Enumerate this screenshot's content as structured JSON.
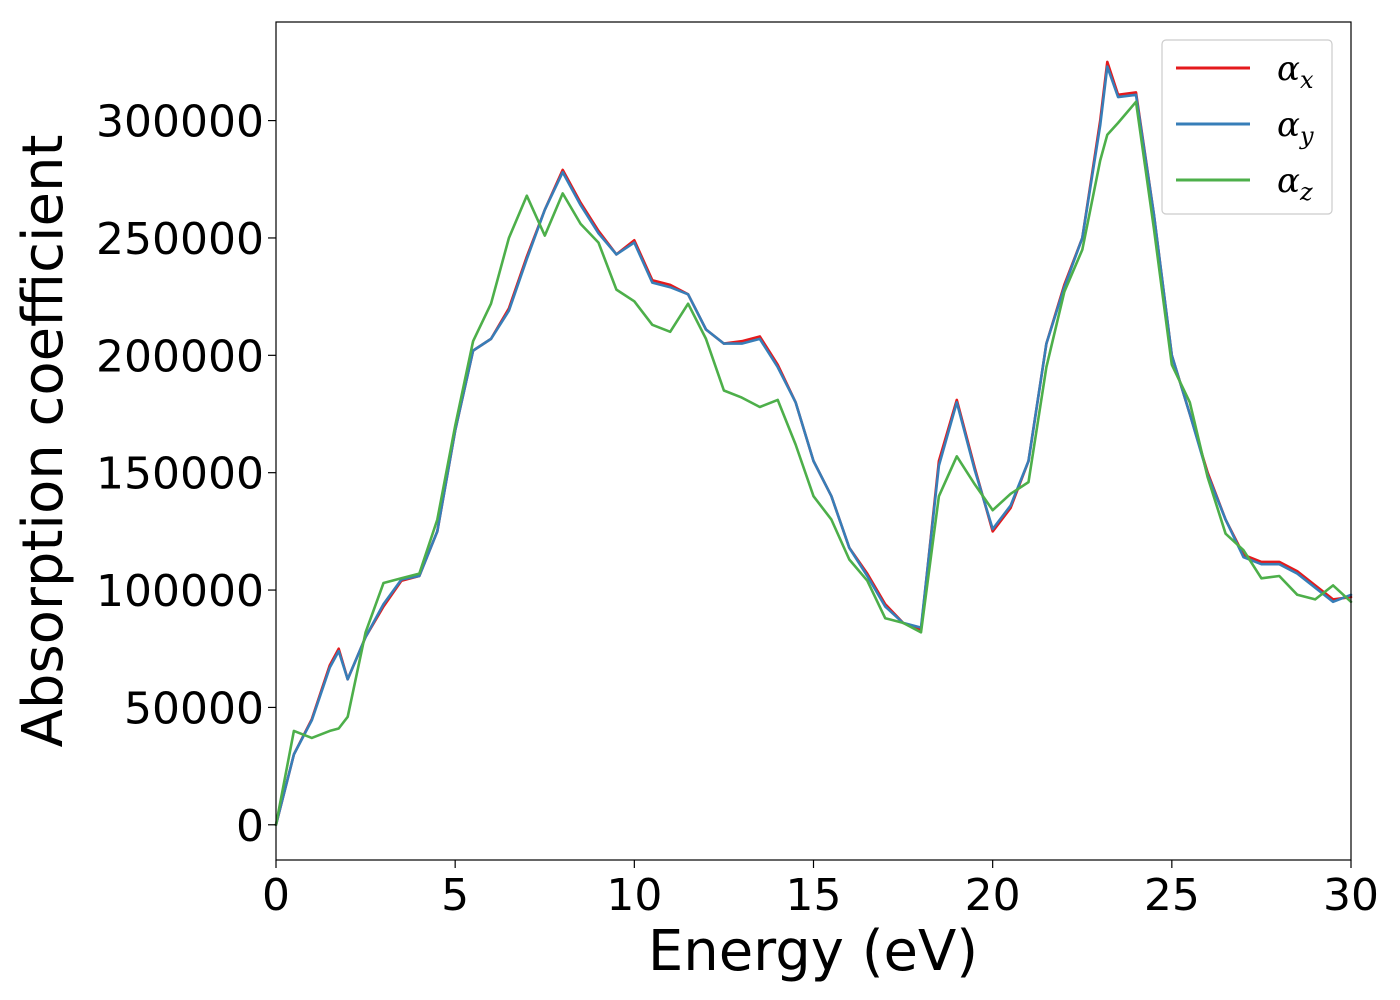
{
  "chart_data": {
    "type": "line",
    "xlabel": "Energy (eV)",
    "ylabel": "Absorption coefficient",
    "xlim": [
      0,
      30
    ],
    "ylim": [
      -15000,
      342000
    ],
    "x_ticks": [
      0,
      5,
      10,
      15,
      20,
      25,
      30
    ],
    "x_tick_labels": [
      "0",
      "5",
      "10",
      "15",
      "20",
      "25",
      "30"
    ],
    "y_ticks": [
      0,
      50000,
      100000,
      150000,
      200000,
      250000,
      300000
    ],
    "y_tick_labels": [
      "0",
      "50000",
      "100000",
      "150000",
      "200000",
      "250000",
      "300000"
    ],
    "grid": false,
    "legend_position": "top-right",
    "x": [
      0,
      0.5,
      1,
      1.5,
      1.75,
      2,
      2.5,
      3,
      3.5,
      4,
      4.5,
      5,
      5.5,
      6,
      6.5,
      7,
      7.5,
      8,
      8.5,
      9,
      9.5,
      10,
      10.5,
      11,
      11.5,
      12,
      12.5,
      13,
      13.5,
      14,
      14.5,
      15,
      15.5,
      16,
      16.5,
      17,
      17.5,
      18,
      18.5,
      19,
      19.5,
      20,
      20.5,
      21,
      21.5,
      22,
      22.5,
      23,
      23.2,
      23.5,
      24,
      24.5,
      25,
      25.5,
      26,
      26.5,
      27,
      27.5,
      28,
      28.5,
      29,
      29.5,
      30
    ],
    "series": [
      {
        "name": "αx",
        "color": "#e41a1c",
        "values": [
          0,
          30000,
          45000,
          68000,
          75000,
          62000,
          80000,
          93000,
          104000,
          106000,
          125000,
          168000,
          202000,
          207000,
          220000,
          242000,
          262000,
          279000,
          265000,
          253000,
          243000,
          249000,
          232000,
          230000,
          226000,
          211000,
          205000,
          206000,
          208000,
          196000,
          180000,
          155000,
          140000,
          118000,
          107000,
          94000,
          86000,
          83000,
          155000,
          181000,
          152000,
          125000,
          135000,
          155000,
          205000,
          230000,
          250000,
          300000,
          325000,
          311000,
          312000,
          260000,
          200000,
          175000,
          150000,
          130000,
          115000,
          112000,
          112000,
          108000,
          102000,
          96000,
          97000
        ]
      },
      {
        "name": "αy",
        "color": "#377eb8",
        "values": [
          0,
          30000,
          44500,
          67000,
          74000,
          62000,
          80000,
          94000,
          104500,
          106000,
          125000,
          168000,
          202000,
          207000,
          219000,
          241000,
          262000,
          278000,
          264000,
          252000,
          243000,
          248000,
          231000,
          229000,
          226000,
          211000,
          205000,
          205000,
          207000,
          195000,
          180000,
          155000,
          140000,
          118000,
          106000,
          93000,
          86000,
          84000,
          153000,
          180000,
          151000,
          126000,
          136000,
          155000,
          205000,
          229000,
          250000,
          298000,
          323000,
          310000,
          311000,
          260000,
          200000,
          175000,
          149000,
          130000,
          114000,
          111000,
          111000,
          107000,
          101000,
          95000,
          98000
        ]
      },
      {
        "name": "αz",
        "color": "#4daf4a",
        "values": [
          0,
          40000,
          37000,
          40000,
          41000,
          46000,
          82000,
          103000,
          105000,
          107000,
          130000,
          170000,
          206000,
          222000,
          250000,
          268000,
          251000,
          269000,
          256000,
          248000,
          228000,
          223000,
          213000,
          210000,
          222000,
          207000,
          185000,
          182000,
          178000,
          181000,
          162000,
          140000,
          130000,
          113000,
          104000,
          88000,
          86000,
          82000,
          140000,
          157000,
          145000,
          134000,
          141000,
          146000,
          195000,
          227000,
          245000,
          283000,
          294000,
          299000,
          308000,
          254000,
          196000,
          180000,
          148000,
          124000,
          117000,
          105000,
          106000,
          98000,
          96000,
          102000,
          95000
        ]
      }
    ]
  }
}
